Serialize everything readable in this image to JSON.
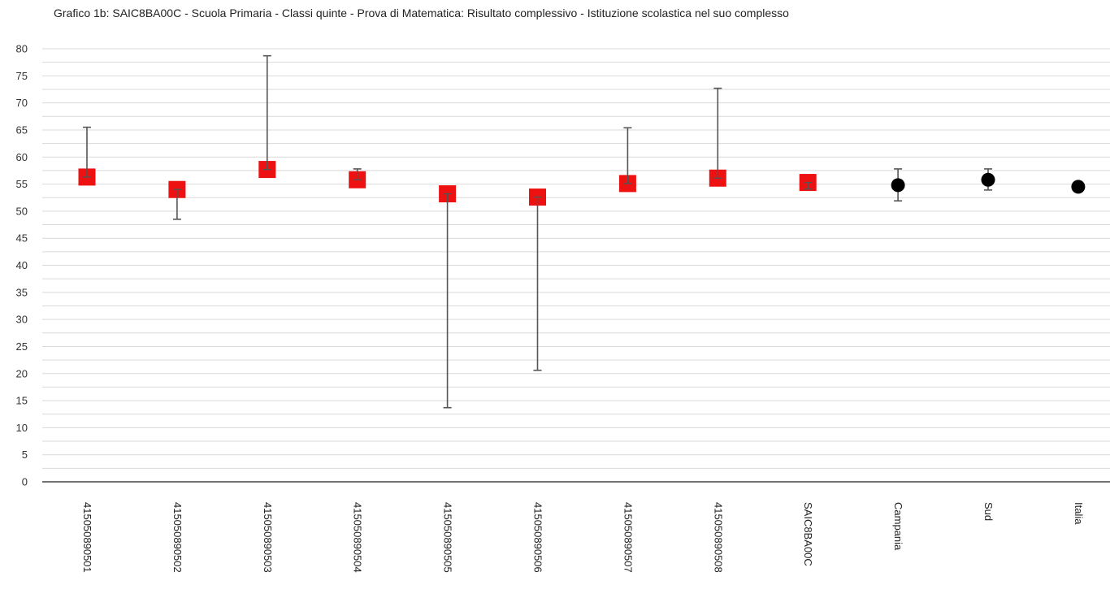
{
  "chart_data": {
    "type": "scatter",
    "title": "Grafico 1b: SAIC8BA00C - Scuola Primaria - Classi quinte - Prova di Matematica: Risultato complessivo - Istituzione scolastica nel suo complesso",
    "xlabel": "",
    "ylabel": "",
    "ylim": [
      0,
      80
    ],
    "yticks": [
      0,
      5,
      10,
      15,
      20,
      25,
      30,
      35,
      40,
      45,
      50,
      55,
      60,
      65,
      70,
      75,
      80
    ],
    "grid": true,
    "minor_grid_step": 2.5,
    "categories": [
      "415050890501",
      "415050890502",
      "415050890503",
      "415050890504",
      "415050890505",
      "415050890506",
      "415050890507",
      "415050890508",
      "SAIC8BA00C",
      "Campania",
      "Sud",
      "Italia"
    ],
    "points": [
      {
        "value": 56.3,
        "low": 56.3,
        "high": 65.5,
        "marker": "square",
        "color": "#ee1111"
      },
      {
        "value": 54.0,
        "low": 48.5,
        "high": 54.0,
        "marker": "square",
        "color": "#ee1111"
      },
      {
        "value": 57.7,
        "low": 57.7,
        "high": 78.7,
        "marker": "square",
        "color": "#ee1111"
      },
      {
        "value": 55.8,
        "low": 55.8,
        "high": 57.8,
        "marker": "square",
        "color": "#ee1111"
      },
      {
        "value": 53.2,
        "low": 13.7,
        "high": 53.2,
        "marker": "square",
        "color": "#ee1111"
      },
      {
        "value": 52.6,
        "low": 20.6,
        "high": 52.6,
        "marker": "square",
        "color": "#ee1111"
      },
      {
        "value": 55.1,
        "low": 55.1,
        "high": 65.4,
        "marker": "square",
        "color": "#ee1111"
      },
      {
        "value": 56.1,
        "low": 56.1,
        "high": 72.7,
        "marker": "square",
        "color": "#ee1111"
      },
      {
        "value": 55.3,
        "low": 54.1,
        "high": 55.3,
        "marker": "square",
        "color": "#ee1111"
      },
      {
        "value": 54.8,
        "low": 51.9,
        "high": 57.8,
        "marker": "circle",
        "color": "#000000"
      },
      {
        "value": 55.8,
        "low": 53.9,
        "high": 57.8,
        "marker": "circle",
        "color": "#000000"
      },
      {
        "value": 54.5,
        "low": 54.0,
        "high": 55.0,
        "marker": "circle",
        "color": "#000000"
      }
    ]
  },
  "colors": {
    "school_marker": "#ee1111",
    "reference_marker": "#000000",
    "error_bar": "#555555",
    "grid": "#d9d9d9",
    "axis": "#444444"
  }
}
